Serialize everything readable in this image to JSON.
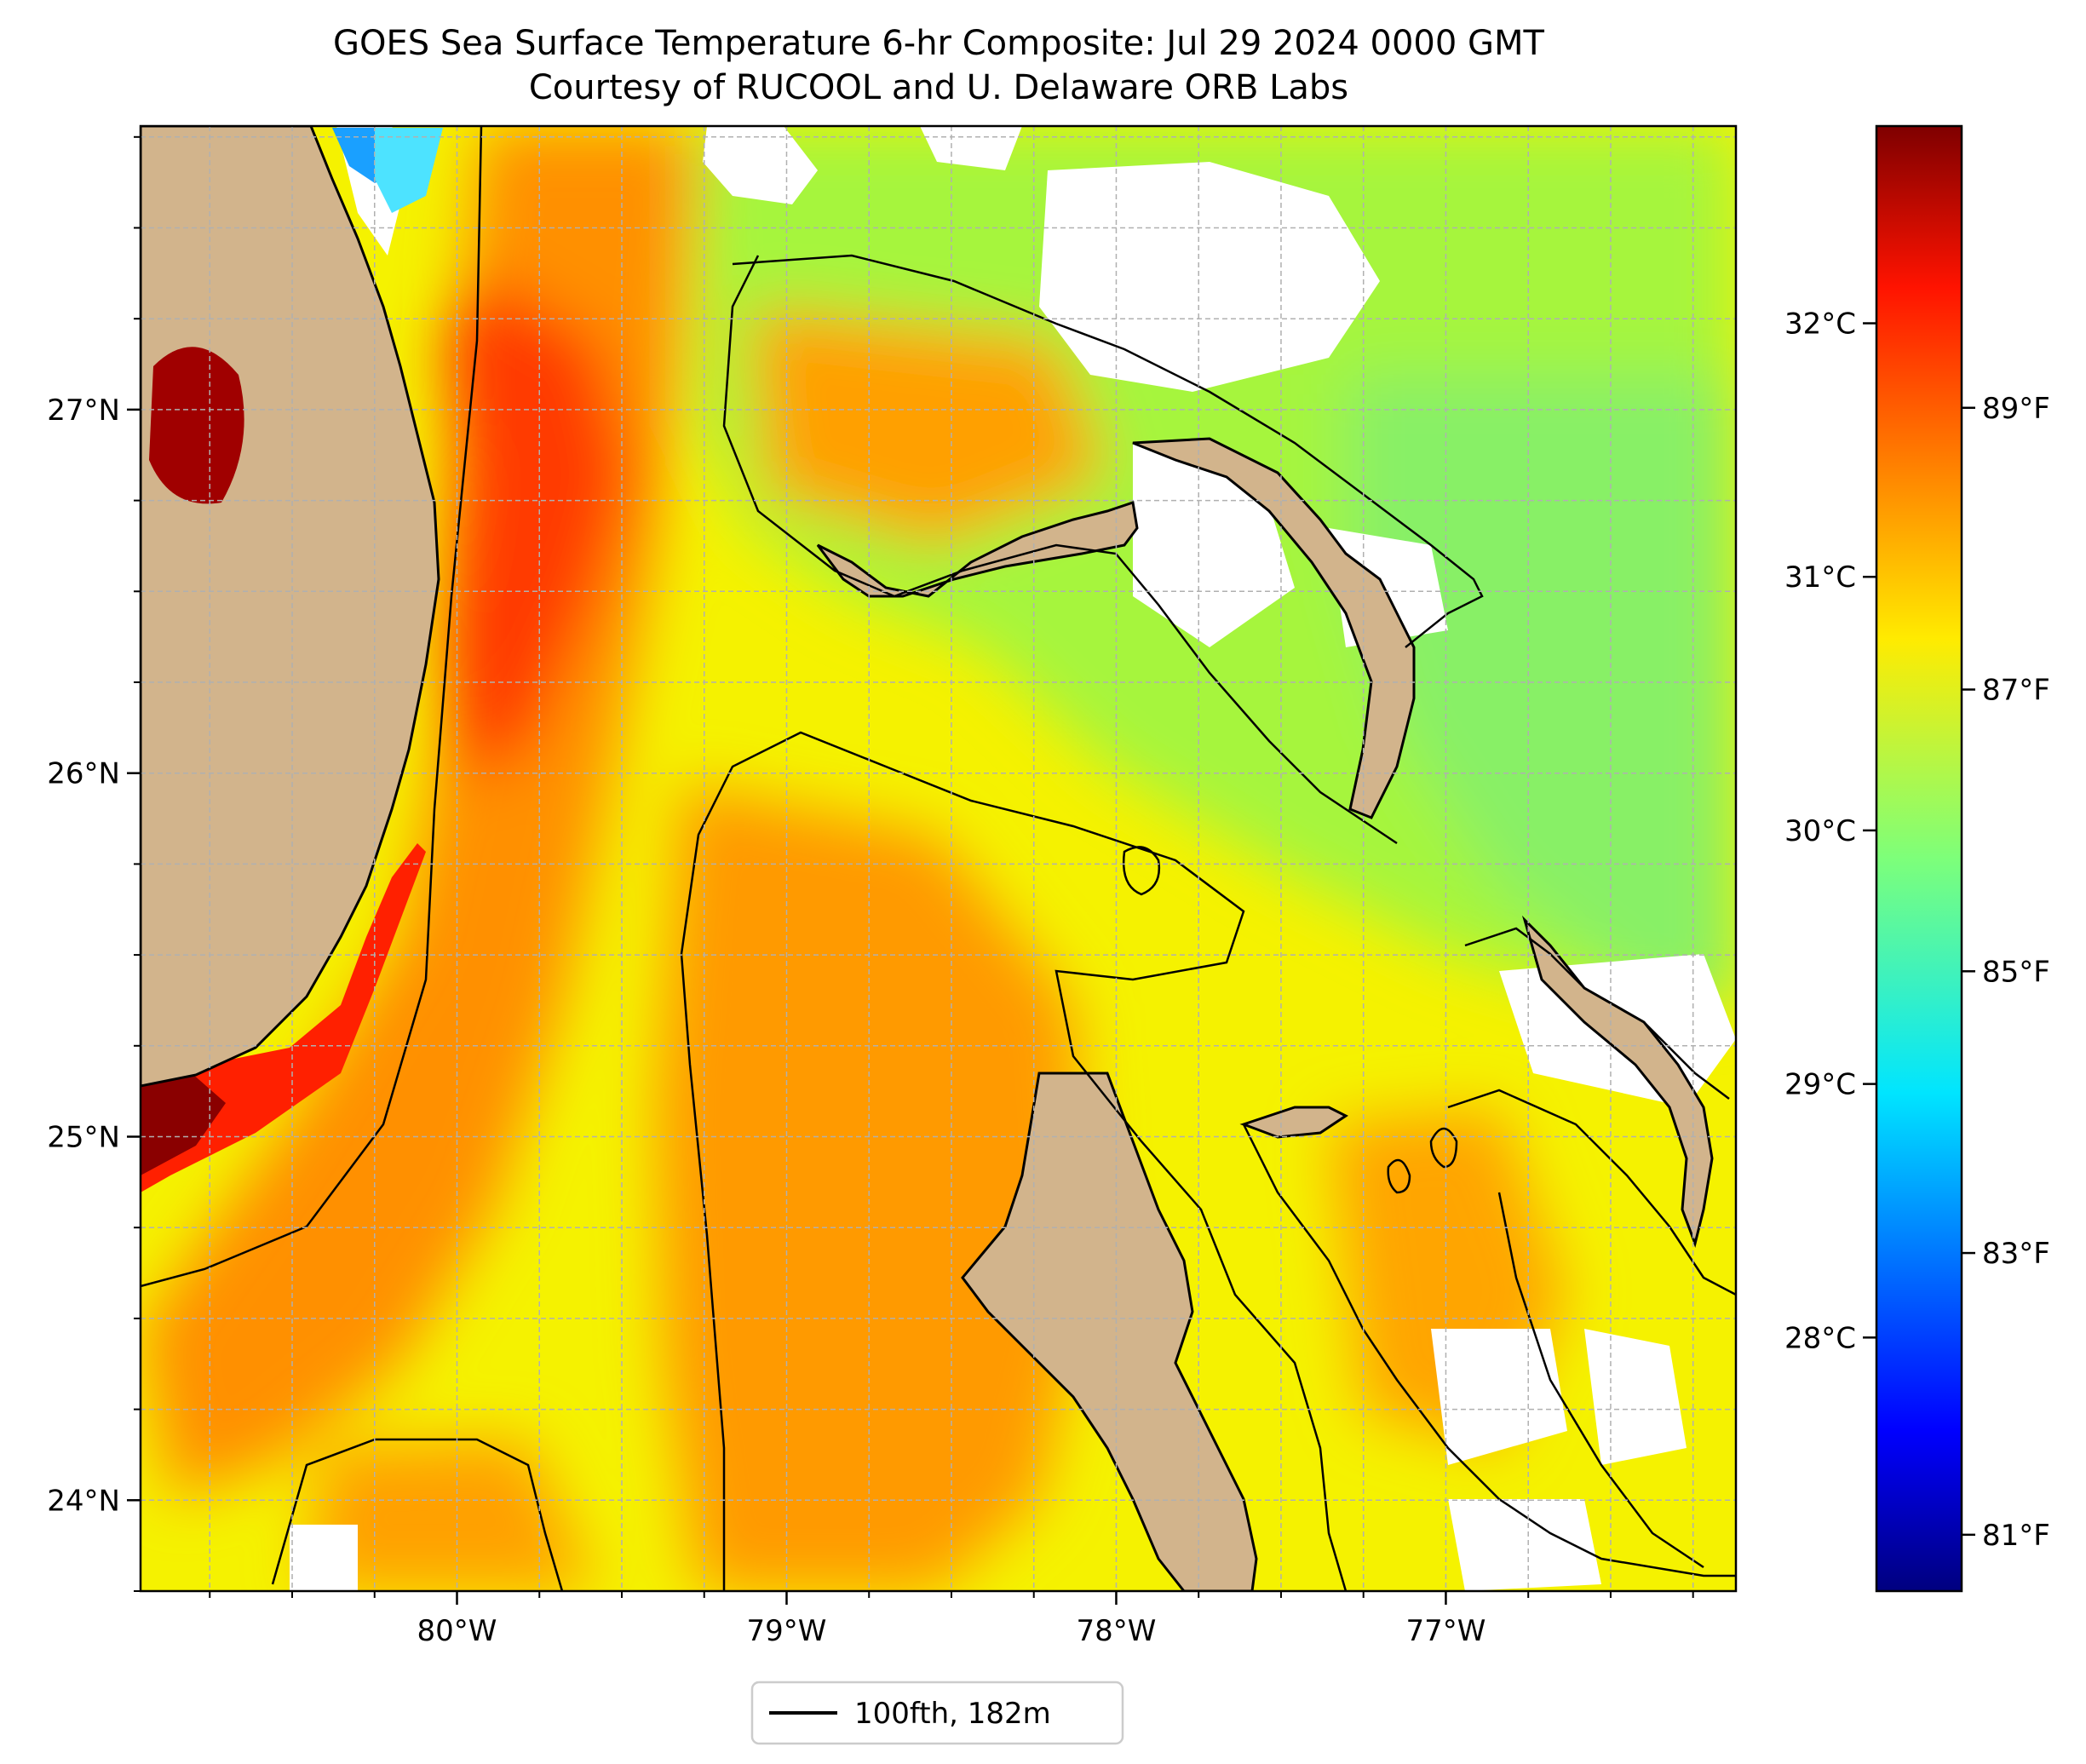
{
  "title": {
    "line1": "GOES Sea Surface Temperature 6-hr Composite: Jul 29 2024 0000 GMT",
    "line2": "Courtesy of RUCOOL and U. Delaware ORB Labs"
  },
  "map": {
    "lon_range": [
      -80.96,
      -76.12
    ],
    "lat_range": [
      23.75,
      27.78
    ],
    "lon_ticks": [
      {
        "value": -80,
        "label": "80°W"
      },
      {
        "value": -79,
        "label": "79°W"
      },
      {
        "value": -78,
        "label": "78°W"
      },
      {
        "value": -77,
        "label": "77°W"
      }
    ],
    "lat_ticks": [
      {
        "value": 27,
        "label": "27°N"
      },
      {
        "value": 26,
        "label": "26°N"
      },
      {
        "value": 25,
        "label": "25°N"
      },
      {
        "value": 24,
        "label": "24°N"
      }
    ],
    "grid": true,
    "colors": {
      "land": "#d2b48c",
      "no_data": "#ffffff",
      "contour": "#000000",
      "grid": "#b0b0b0"
    }
  },
  "colorbar": {
    "colormap": "jet",
    "range_f": [
      80.6,
      91.0
    ],
    "celsius_ticks": [
      {
        "value": 32,
        "label": "32°C"
      },
      {
        "value": 31,
        "label": "31°C"
      },
      {
        "value": 30,
        "label": "30°C"
      },
      {
        "value": 29,
        "label": "29°C"
      },
      {
        "value": 28,
        "label": "28°C"
      }
    ],
    "fahrenheit_ticks": [
      {
        "value": 89,
        "label": "89°F"
      },
      {
        "value": 87,
        "label": "87°F"
      },
      {
        "value": 85,
        "label": "85°F"
      },
      {
        "value": 83,
        "label": "83°F"
      },
      {
        "value": 81,
        "label": "81°F"
      }
    ]
  },
  "legend": {
    "entries": [
      {
        "label": "100fth, 182m",
        "color": "#000000"
      }
    ]
  }
}
